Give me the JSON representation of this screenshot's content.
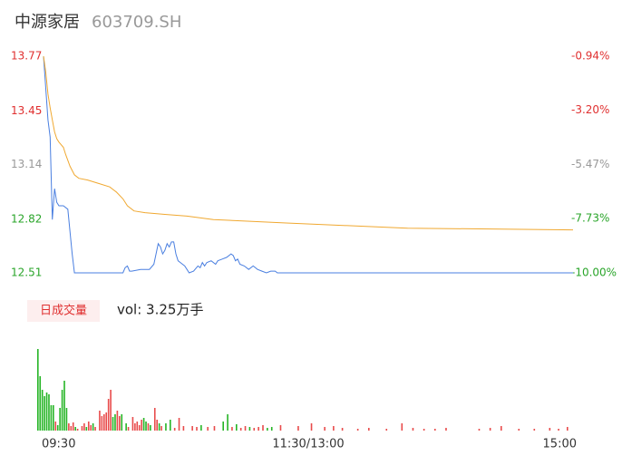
{
  "chart_data": [
    {
      "type": "line",
      "title": "中源家居",
      "subtitle": "603709.SH",
      "xlim": [
        0,
        240
      ],
      "xticks": [
        {
          "value": 0,
          "label": "09:30"
        },
        {
          "value": 120,
          "label": "11:30/13:00"
        },
        {
          "value": 240,
          "label": "15:00"
        }
      ],
      "ylim": [
        12.51,
        13.77
      ],
      "yticks": [
        12.51,
        12.82,
        13.14,
        13.45,
        13.77
      ],
      "ytick_colors": [
        "#2aa52a",
        "#2aa52a",
        "#999999",
        "#e03030",
        "#e03030"
      ],
      "y2lim": [
        -10.0,
        -0.94
      ],
      "y2ticks": [
        {
          "value": -10.0,
          "label": "-10.00%"
        },
        {
          "value": -7.73,
          "label": "-7.73%"
        },
        {
          "value": -5.47,
          "label": "-5.47%"
        },
        {
          "value": -3.2,
          "label": "-3.20%"
        },
        {
          "value": -0.94,
          "label": "-0.94%"
        }
      ],
      "grid": false,
      "series": [
        {
          "color": "#4a7fe0",
          "x": [
            0,
            2,
            3,
            4,
            5,
            6,
            7,
            9,
            11,
            12,
            13,
            14,
            36,
            37,
            38,
            39,
            40,
            44,
            48,
            50,
            51,
            52,
            53,
            54,
            55,
            56,
            57,
            58,
            59,
            60,
            61,
            62,
            64,
            65,
            66,
            68,
            70,
            71,
            72,
            73,
            74,
            76,
            78,
            79,
            81,
            83,
            85,
            86,
            87,
            88,
            89,
            91,
            93,
            95,
            97,
            99,
            101,
            103,
            105,
            106,
            108,
            240
          ],
          "values": [
            13.77,
            13.4,
            13.3,
            12.82,
            13.0,
            12.92,
            12.9,
            12.9,
            12.88,
            12.75,
            12.62,
            12.51,
            12.51,
            12.54,
            12.55,
            12.52,
            12.52,
            12.53,
            12.53,
            12.56,
            12.62,
            12.68,
            12.66,
            12.62,
            12.64,
            12.68,
            12.66,
            12.69,
            12.69,
            12.62,
            12.58,
            12.57,
            12.55,
            12.53,
            12.51,
            12.52,
            12.55,
            12.54,
            12.57,
            12.55,
            12.57,
            12.58,
            12.56,
            12.58,
            12.59,
            12.6,
            12.62,
            12.61,
            12.58,
            12.59,
            12.56,
            12.55,
            12.53,
            12.55,
            12.53,
            12.52,
            12.51,
            12.52,
            12.52,
            12.51,
            12.51,
            12.51
          ]
        },
        {
          "color": "#f0a830",
          "x": [
            0,
            1,
            2,
            3,
            4,
            5,
            6,
            7,
            9,
            10,
            12,
            14,
            16,
            20,
            25,
            30,
            33,
            36,
            38,
            41,
            46,
            55,
            65,
            77,
            110,
            165,
            240
          ],
          "values": [
            13.77,
            13.68,
            13.55,
            13.47,
            13.4,
            13.33,
            13.29,
            13.27,
            13.24,
            13.2,
            13.13,
            13.08,
            13.06,
            13.05,
            13.03,
            13.01,
            12.98,
            12.94,
            12.9,
            12.87,
            12.86,
            12.85,
            12.84,
            12.82,
            12.8,
            12.77,
            12.76
          ]
        }
      ]
    },
    {
      "type": "bar",
      "title": "日成交量",
      "subtitle": "vol: 3.25万手",
      "xlim": [
        0,
        240
      ],
      "x": [
        0,
        1,
        2,
        3,
        4,
        5,
        6,
        7,
        8,
        9,
        10,
        11,
        12,
        13,
        14,
        15,
        16,
        17,
        18,
        20,
        21,
        22,
        23,
        24,
        25,
        26,
        28,
        29,
        30,
        31,
        32,
        33,
        34,
        35,
        36,
        37,
        38,
        40,
        41,
        43,
        44,
        45,
        46,
        47,
        48,
        49,
        50,
        51,
        53,
        54,
        55,
        56,
        58,
        60,
        62,
        64,
        66,
        70,
        72,
        74,
        77,
        80,
        84,
        86,
        88,
        90,
        92,
        94,
        96,
        98,
        100,
        102,
        104,
        106,
        110,
        118,
        124,
        130,
        134,
        138,
        145,
        150,
        158,
        165,
        170,
        175,
        180,
        185,
        200,
        205,
        210,
        218,
        225,
        232,
        236,
        240
      ],
      "values": [
        90,
        60,
        45,
        38,
        42,
        40,
        28,
        28,
        10,
        6,
        25,
        45,
        55,
        25,
        8,
        5,
        9,
        4,
        2,
        5,
        8,
        4,
        10,
        6,
        8,
        4,
        22,
        16,
        18,
        20,
        35,
        45,
        15,
        18,
        22,
        16,
        18,
        8,
        4,
        15,
        8,
        10,
        6,
        12,
        14,
        10,
        8,
        6,
        25,
        12,
        8,
        5,
        8,
        12,
        3,
        14,
        5,
        5,
        4,
        6,
        4,
        5,
        10,
        18,
        4,
        7,
        3,
        5,
        4,
        3,
        4,
        6,
        3,
        4,
        6,
        5,
        8,
        4,
        5,
        3,
        2,
        3,
        2,
        8,
        3,
        2,
        2,
        3,
        2,
        3,
        5,
        2,
        2,
        3,
        2,
        4
      ],
      "colors": [
        "#26b526",
        "#26b526",
        "#26b526",
        "#26b526",
        "#26b526",
        "#26b526",
        "#26b526",
        "#26b526",
        "#e84b4b",
        "#26b526",
        "#26b526",
        "#26b526",
        "#26b526",
        "#26b526",
        "#e84b4b",
        "#e84b4b",
        "#e84b4b",
        "#26b526",
        "#e84b4b",
        "#e84b4b",
        "#e84b4b",
        "#26b526",
        "#e84b4b",
        "#e84b4b",
        "#26b526",
        "#e84b4b",
        "#e84b4b",
        "#e84b4b",
        "#e84b4b",
        "#e84b4b",
        "#e84b4b",
        "#e84b4b",
        "#26b526",
        "#26b526",
        "#e84b4b",
        "#e84b4b",
        "#26b526",
        "#26b526",
        "#e84b4b",
        "#e84b4b",
        "#e84b4b",
        "#e84b4b",
        "#e84b4b",
        "#e84b4b",
        "#26b526",
        "#26b526",
        "#e84b4b",
        "#26b526",
        "#e84b4b",
        "#e84b4b",
        "#26b526",
        "#e84b4b",
        "#26b526",
        "#26b526",
        "#e84b4b",
        "#e84b4b",
        "#e84b4b",
        "#e84b4b",
        "#e84b4b",
        "#26b526",
        "#e84b4b",
        "#e84b4b",
        "#26b526",
        "#26b526",
        "#e84b4b",
        "#26b526",
        "#e84b4b",
        "#e84b4b",
        "#26b526",
        "#e84b4b",
        "#e84b4b",
        "#e84b4b",
        "#26b526",
        "#26b526",
        "#e84b4b",
        "#e84b4b",
        "#e84b4b",
        "#e84b4b",
        "#e84b4b",
        "#e84b4b",
        "#e84b4b",
        "#e84b4b",
        "#e84b4b",
        "#e84b4b",
        "#e84b4b",
        "#e84b4b",
        "#e84b4b",
        "#e84b4b",
        "#e84b4b",
        "#e84b4b",
        "#e84b4b",
        "#e84b4b",
        "#e84b4b",
        "#e84b4b",
        "#e84b4b",
        "#e84b4b"
      ]
    }
  ]
}
